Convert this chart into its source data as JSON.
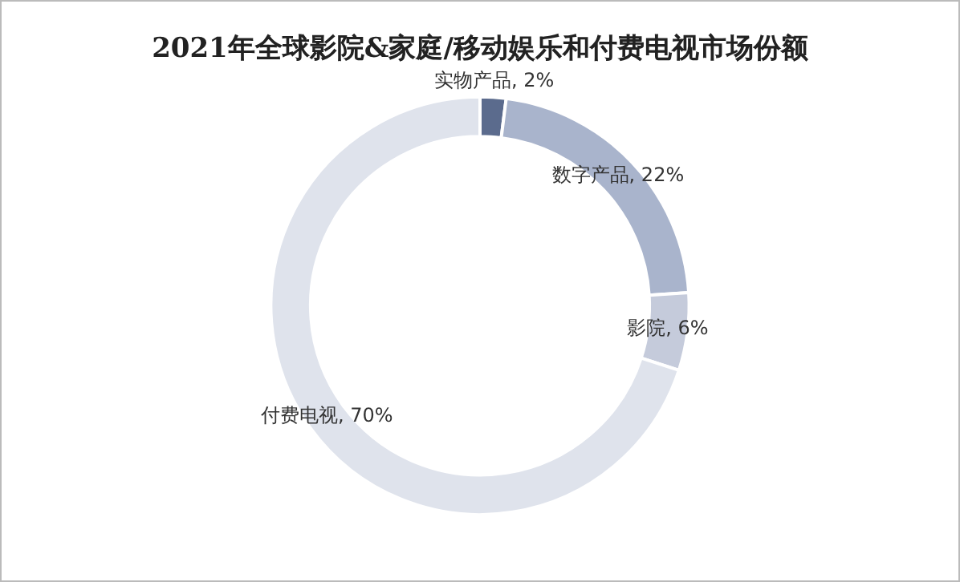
{
  "chart_data": {
    "type": "donut",
    "title": "2021年全球影院&家庭/移动娱乐和付费电视市场份额",
    "categories": [
      "实物产品",
      "数字产品",
      "影院",
      "付费电视"
    ],
    "values": [
      2,
      22,
      6,
      70
    ],
    "colors": [
      "#5b6b8d",
      "#a9b4cc",
      "#c5cbdb",
      "#dfe3ec"
    ],
    "value_labels": [
      "2%",
      "22%",
      "6%",
      "70%"
    ],
    "legend": false
  }
}
